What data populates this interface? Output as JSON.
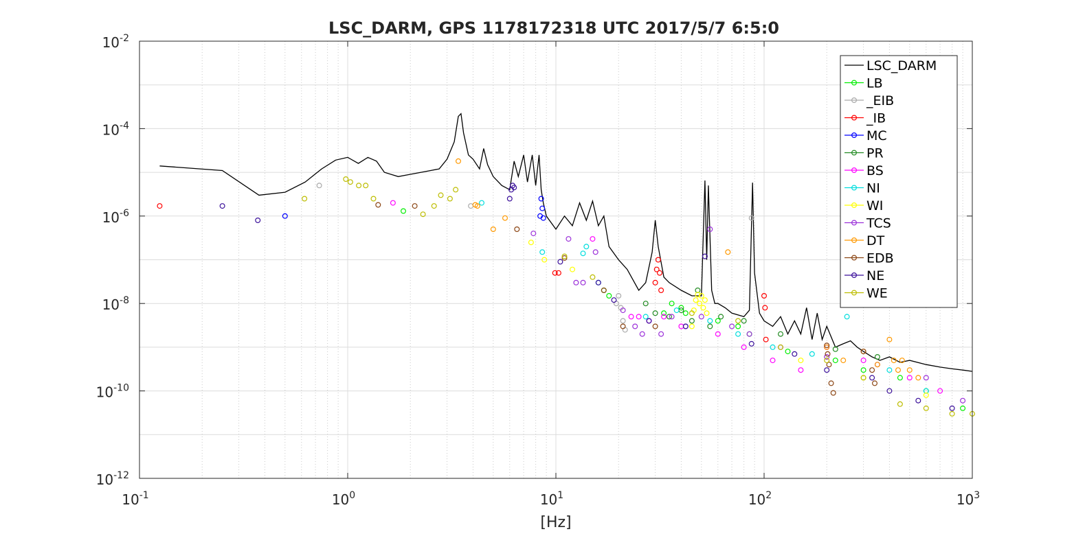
{
  "chart_data": {
    "type": "line",
    "title": "LSC_DARM, GPS 1178172318 UTC 2017/5/7 6:5:0",
    "xlabel": "[Hz]",
    "ylabel": "",
    "x_scale": "log",
    "y_scale": "log",
    "xlim": [
      0.1,
      1000
    ],
    "ylim": [
      1e-12,
      0.01
    ],
    "grid": true,
    "legend_position": "top-right",
    "x_ticks": [
      {
        "base": "10",
        "exp": "-1"
      },
      {
        "base": "10",
        "exp": "0"
      },
      {
        "base": "10",
        "exp": "1"
      },
      {
        "base": "10",
        "exp": "2"
      },
      {
        "base": "10",
        "exp": "3"
      }
    ],
    "y_ticks": [
      {
        "base": "10",
        "exp": "-2"
      },
      {
        "base": "10",
        "exp": "-4"
      },
      {
        "base": "10",
        "exp": "-6"
      },
      {
        "base": "10",
        "exp": "-8"
      },
      {
        "base": "10",
        "exp": "-10"
      },
      {
        "base": "10",
        "exp": "-12"
      }
    ],
    "series": [
      {
        "name": "LSC_DARM",
        "color": "#000000",
        "marker": "none",
        "x": [
          0.125,
          0.25,
          0.375,
          0.5,
          0.625,
          0.75,
          0.875,
          1.0,
          1.125,
          1.25,
          1.375,
          1.5,
          1.75,
          2.0,
          2.25,
          2.5,
          2.75,
          3.0,
          3.25,
          3.4,
          3.5,
          3.6,
          3.8,
          4.0,
          4.3,
          4.5,
          4.7,
          5.0,
          5.5,
          6.0,
          6.3,
          6.6,
          7.0,
          7.3,
          7.7,
          8.0,
          8.3,
          8.5,
          8.7,
          9.0,
          10,
          11,
          12,
          13,
          14,
          15,
          16,
          17,
          18,
          20,
          22,
          25,
          27,
          29,
          30,
          31,
          33,
          35,
          40,
          45,
          50,
          52,
          53,
          54,
          56,
          58,
          60,
          65,
          70,
          80,
          85,
          88,
          90,
          95,
          100,
          110,
          120,
          130,
          140,
          150,
          160,
          170,
          180,
          190,
          200,
          220,
          240,
          260,
          280,
          300,
          330,
          360,
          400,
          450,
          500,
          600,
          700,
          800,
          900,
          1000
        ],
        "y": [
          1.4e-05,
          1.1e-05,
          3e-06,
          3.5e-06,
          6e-06,
          1.2e-05,
          1.9e-05,
          2.2e-05,
          1.6e-05,
          2.2e-05,
          1.8e-05,
          1e-05,
          8e-06,
          9e-06,
          1e-05,
          1.1e-05,
          1.2e-05,
          2e-05,
          5e-05,
          0.00019,
          0.00022,
          8e-05,
          2.5e-05,
          2e-05,
          1.2e-05,
          3.5e-05,
          1.5e-05,
          8e-06,
          5e-06,
          4e-06,
          1.8e-05,
          8e-06,
          2.5e-05,
          6e-06,
          2.5e-05,
          5e-06,
          2.5e-05,
          4e-06,
          2e-06,
          1e-06,
          5e-07,
          1e-06,
          6e-07,
          2e-06,
          8e-07,
          2.2e-06,
          6e-07,
          1e-06,
          2e-07,
          1e-07,
          6e-08,
          2e-08,
          3e-08,
          1.5e-07,
          8e-07,
          2e-07,
          4e-08,
          3e-08,
          2e-08,
          1.5e-08,
          1.5e-08,
          6.5e-06,
          1e-07,
          5e-06,
          2e-08,
          1e-08,
          1e-08,
          8e-09,
          6e-09,
          5e-09,
          7e-09,
          5.8e-06,
          5e-08,
          6e-09,
          4e-09,
          3e-09,
          5e-09,
          2e-09,
          4e-09,
          2e-09,
          8e-09,
          1.5e-09,
          6e-09,
          1.5e-09,
          3e-09,
          1e-09,
          1.2e-09,
          1.4e-09,
          1e-09,
          8e-10,
          6e-10,
          5e-10,
          6e-10,
          4.5e-10,
          5e-10,
          4e-10,
          3.5e-10,
          3.2e-10,
          3e-10,
          2.8e-10
        ]
      },
      {
        "name": "LB",
        "color": "#00ee00",
        "marker": "circle",
        "x": [
          1.85,
          17,
          18,
          33,
          36,
          40,
          42,
          60,
          75,
          85,
          130,
          220,
          300,
          450,
          600,
          900
        ],
        "y": [
          1.3e-06,
          2e-08,
          1.5e-08,
          6e-09,
          1e-08,
          8e-09,
          6e-09,
          4e-09,
          3e-09,
          2e-09,
          8e-10,
          5e-10,
          3e-10,
          2e-10,
          1e-10,
          4e-11
        ]
      },
      {
        "name": "_EIB",
        "color": "#aaaaaa",
        "marker": "circle",
        "x": [
          0.73,
          3.9,
          19.5,
          20,
          20.5,
          21,
          21.5,
          87
        ],
        "y": [
          5e-06,
          1.7e-06,
          1e-08,
          1.5e-08,
          8e-09,
          4e-09,
          2.5e-09,
          9e-07
        ]
      },
      {
        "name": "_IB",
        "color": "#ff0000",
        "marker": "circle",
        "x": [
          0.125,
          9.9,
          10.3,
          30,
          30.5,
          31,
          31.5,
          32,
          100,
          101,
          102
        ],
        "y": [
          1.7e-06,
          5e-08,
          5e-08,
          3e-08,
          6e-08,
          1e-07,
          5e-08,
          2e-08,
          1.5e-08,
          8e-09,
          1.5e-09
        ]
      },
      {
        "name": "MC",
        "color": "#0000ff",
        "marker": "circle",
        "x": [
          0.5,
          8.4,
          8.5,
          8.6,
          8.7
        ],
        "y": [
          1e-06,
          1e-06,
          2.5e-06,
          1.5e-06,
          9e-07
        ]
      },
      {
        "name": "PR",
        "color": "#228b22",
        "marker": "circle",
        "x": [
          27,
          30,
          35,
          40,
          45,
          48,
          55,
          62,
          80,
          120,
          220,
          350
        ],
        "y": [
          1e-08,
          6e-09,
          5e-09,
          7e-09,
          4e-09,
          2e-08,
          3e-09,
          5e-09,
          4e-09,
          2e-09,
          9e-10,
          6e-10
        ]
      },
      {
        "name": "BS",
        "color": "#ff00ff",
        "marker": "circle",
        "x": [
          1.65,
          15,
          23,
          25,
          28,
          33,
          40,
          60,
          80,
          110,
          150,
          200,
          300,
          500,
          700
        ],
        "y": [
          2e-06,
          3e-07,
          5e-09,
          5e-09,
          4e-09,
          5e-09,
          3e-09,
          2e-09,
          1e-09,
          5e-10,
          3e-10,
          1e-09,
          5e-10,
          2e-10,
          1e-10
        ]
      },
      {
        "name": "NI",
        "color": "#00dddd",
        "marker": "circle",
        "x": [
          4.4,
          8.6,
          13.5,
          14,
          16,
          27,
          38,
          55,
          75,
          110,
          170,
          250,
          400,
          600
        ],
        "y": [
          2e-06,
          1.5e-07,
          1.4e-07,
          2e-07,
          3e-08,
          5e-09,
          7e-09,
          4e-09,
          2e-09,
          1e-09,
          7e-10,
          5e-09,
          3e-10,
          1e-10
        ]
      },
      {
        "name": "WI",
        "color": "#ffff00",
        "marker": "circle",
        "x": [
          7.6,
          8.8,
          12,
          45,
          46,
          47,
          48,
          49,
          50,
          51,
          52,
          53,
          150,
          300,
          600
        ],
        "y": [
          2.5e-07,
          1e-07,
          6e-08,
          3e-09,
          7e-09,
          1.2e-08,
          1.6e-08,
          1e-08,
          1.5e-08,
          8e-09,
          1.2e-08,
          6e-09,
          5e-10,
          2e-10,
          8e-11
        ]
      },
      {
        "name": "TCS",
        "color": "#9b30d9",
        "marker": "circle",
        "x": [
          7.8,
          11.5,
          12.5,
          13.5,
          15.5,
          21,
          24,
          26,
          32,
          36,
          42,
          50,
          55,
          70,
          85,
          120,
          200,
          350,
          600,
          900
        ],
        "y": [
          4e-07,
          3e-07,
          3e-08,
          3e-08,
          1.5e-07,
          7e-09,
          3e-09,
          2e-09,
          2e-09,
          5e-09,
          3e-09,
          5e-09,
          5e-07,
          3e-09,
          2e-09,
          1e-09,
          6e-10,
          4e-10,
          2e-10,
          6e-11
        ]
      },
      {
        "name": "DT",
        "color": "#ff9900",
        "marker": "circle",
        "x": [
          3.4,
          4.1,
          4.2,
          5.0,
          5.7,
          67,
          200,
          240,
          300,
          350,
          400,
          420,
          440,
          460,
          500,
          550
        ],
        "y": [
          1.8e-05,
          1.8e-06,
          1.7e-06,
          5e-07,
          9e-07,
          1.5e-07,
          1e-09,
          5e-10,
          8e-10,
          4e-10,
          1.5e-09,
          5e-10,
          3e-10,
          5e-10,
          3e-10,
          2e-10
        ]
      },
      {
        "name": "EDB",
        "color": "#8b4513",
        "marker": "circle",
        "x": [
          1.4,
          2.1,
          6.5,
          11,
          17,
          21,
          30,
          200,
          202,
          205,
          210,
          215,
          300,
          330,
          340
        ],
        "y": [
          1.8e-06,
          1.7e-06,
          5e-07,
          1.1e-07,
          2e-08,
          3e-09,
          3e-09,
          1.1e-09,
          7e-10,
          4e-10,
          1.5e-10,
          9e-11,
          8e-10,
          3e-10,
          1.5e-10
        ]
      },
      {
        "name": "NE",
        "color": "#3a0f9a",
        "marker": "circle",
        "x": [
          0.25,
          0.37,
          6.0,
          6.1,
          6.2,
          6.3,
          10.5,
          16,
          19,
          28,
          42,
          52,
          87,
          140,
          200,
          330,
          400,
          550,
          800
        ],
        "y": [
          1.7e-06,
          8e-07,
          2.5e-06,
          4e-06,
          5e-06,
          4.5e-06,
          9e-08,
          3e-08,
          1.2e-08,
          4e-09,
          3e-09,
          1.2e-07,
          1.2e-09,
          7e-10,
          3e-10,
          2e-10,
          1e-10,
          6e-11,
          4e-11
        ]
      },
      {
        "name": "WE",
        "color": "#bdbd00",
        "marker": "circle",
        "x": [
          0.62,
          0.98,
          1.03,
          1.13,
          1.22,
          1.33,
          2.3,
          2.6,
          2.8,
          3.1,
          3.3,
          11,
          15,
          45,
          75,
          120,
          200,
          300,
          450,
          600,
          800,
          1000
        ],
        "y": [
          2.5e-06,
          7e-06,
          6e-06,
          5e-06,
          5e-06,
          2.5e-06,
          1.1e-06,
          1.7e-06,
          3e-06,
          2.5e-06,
          4e-06,
          1.2e-07,
          4e-08,
          6e-09,
          4e-09,
          1e-09,
          5e-10,
          2e-10,
          5e-11,
          4e-11,
          3e-11,
          3e-11
        ]
      }
    ]
  }
}
